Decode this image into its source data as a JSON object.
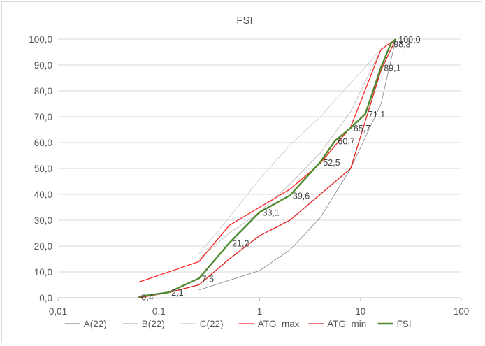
{
  "chart_data": {
    "type": "line",
    "title": "FSI",
    "x_scale": "log",
    "xlim": [
      0.01,
      100
    ],
    "ylim": [
      0,
      100
    ],
    "x_ticks": [
      {
        "value": 0.01,
        "label": "0,01"
      },
      {
        "value": 0.1,
        "label": "0,1"
      },
      {
        "value": 1,
        "label": "1"
      },
      {
        "value": 10,
        "label": "10"
      },
      {
        "value": 100,
        "label": "100"
      }
    ],
    "y_ticks": [
      {
        "value": 0,
        "label": "0,0"
      },
      {
        "value": 10,
        "label": "10,0"
      },
      {
        "value": 20,
        "label": "20,0"
      },
      {
        "value": 30,
        "label": "30,0"
      },
      {
        "value": 40,
        "label": "40,0"
      },
      {
        "value": 50,
        "label": "50,0"
      },
      {
        "value": 60,
        "label": "60,0"
      },
      {
        "value": 70,
        "label": "70,0"
      },
      {
        "value": 80,
        "label": "80,0"
      },
      {
        "value": 90,
        "label": "90,0"
      },
      {
        "value": 100,
        "label": "100,0"
      }
    ],
    "grid": "horizontal",
    "legend_position": "bottom",
    "series": [
      {
        "name": "A(22)",
        "color": "#808080",
        "width": 0.8,
        "points": [
          [
            0.25,
            3
          ],
          [
            1,
            10.5
          ],
          [
            2,
            18.5
          ],
          [
            4,
            31
          ],
          [
            8,
            50
          ],
          [
            16,
            75
          ],
          [
            22.4,
            100
          ]
        ]
      },
      {
        "name": "B(22)",
        "color": "#b4b4b4",
        "width": 0.8,
        "points": [
          [
            0.25,
            15
          ],
          [
            0.5,
            25
          ],
          [
            1,
            33
          ],
          [
            2,
            44
          ],
          [
            4,
            56
          ],
          [
            8,
            72
          ],
          [
            16,
            96
          ],
          [
            22.4,
            100
          ]
        ]
      },
      {
        "name": "C(22)",
        "color": "#c8c8c8",
        "width": 0.8,
        "points": [
          [
            0.25,
            17
          ],
          [
            0.5,
            31
          ],
          [
            1,
            46
          ],
          [
            2,
            59
          ],
          [
            4,
            70
          ],
          [
            8,
            83
          ],
          [
            16,
            96
          ],
          [
            22.4,
            100
          ]
        ]
      },
      {
        "name": "ATG_max",
        "color": "#ff2020",
        "width": 1.3,
        "points": [
          [
            0.063,
            6
          ],
          [
            0.25,
            14
          ],
          [
            0.5,
            28
          ],
          [
            1,
            35
          ],
          [
            2,
            42
          ],
          [
            4,
            52
          ],
          [
            8,
            66
          ],
          [
            16,
            96
          ],
          [
            22.4,
            100
          ]
        ]
      },
      {
        "name": "ATG_min",
        "color": "#e02020",
        "width": 1.3,
        "points": [
          [
            0.063,
            0
          ],
          [
            0.125,
            2
          ],
          [
            0.25,
            5
          ],
          [
            0.5,
            15
          ],
          [
            1,
            24
          ],
          [
            2,
            30
          ],
          [
            4,
            40
          ],
          [
            8,
            50
          ],
          [
            16,
            88
          ],
          [
            22.4,
            100
          ]
        ]
      },
      {
        "name": "FSI",
        "color": "#4e8a2e",
        "width": 2.4,
        "points": [
          [
            0.063,
            0.4
          ],
          [
            0.125,
            2.1
          ],
          [
            0.25,
            7.5
          ],
          [
            0.5,
            21.2
          ],
          [
            1,
            33.1
          ],
          [
            2,
            39.6
          ],
          [
            4,
            52.5
          ],
          [
            5.6,
            60.7
          ],
          [
            8,
            65.7
          ],
          [
            11.2,
            71.1
          ],
          [
            16,
            89.1
          ],
          [
            20,
            98.3
          ],
          [
            22.4,
            100.0
          ]
        ]
      }
    ],
    "data_labels": [
      {
        "x": 0.063,
        "y": 0.4,
        "label": "0,4"
      },
      {
        "x": 0.125,
        "y": 2.1,
        "label": "2,1"
      },
      {
        "x": 0.25,
        "y": 7.5,
        "label": "7,5"
      },
      {
        "x": 0.5,
        "y": 21.2,
        "label": "21,2"
      },
      {
        "x": 1,
        "y": 33.1,
        "label": "33,1"
      },
      {
        "x": 2,
        "y": 39.6,
        "label": "39,6"
      },
      {
        "x": 4,
        "y": 52.5,
        "label": "52,5"
      },
      {
        "x": 5.6,
        "y": 60.7,
        "label": "60,7"
      },
      {
        "x": 8,
        "y": 65.7,
        "label": "65,7"
      },
      {
        "x": 11.2,
        "y": 71.1,
        "label": "71,1"
      },
      {
        "x": 16,
        "y": 89.1,
        "label": "89,1"
      },
      {
        "x": 20,
        "y": 98.3,
        "label": "98,3"
      },
      {
        "x": 22.4,
        "y": 100.0,
        "label": "100,0"
      }
    ]
  }
}
